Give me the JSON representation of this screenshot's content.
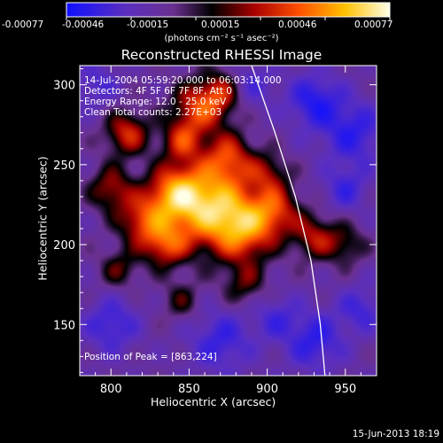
{
  "colorbar": {
    "tick_labels": [
      "-0.00077",
      "-0.00046",
      "-0.00015",
      "0.00015",
      "0.00046",
      "0.00077"
    ],
    "units": "(photons cm⁻² s⁻¹ asec⁻²)",
    "range": [
      -0.00077,
      0.00077
    ]
  },
  "title": "Reconstructed RHESSI Image",
  "info": {
    "line1": "14-Jul-2004 05:59:20.000 to 06:03:14.000",
    "line2": "Detectors: 4F 5F 6F 7F 8F, Att 0",
    "line3": "Energy Range: 12.0 - 25.0 keV",
    "line4": "Clean    Total counts: 2.27E+03"
  },
  "peak_label": "Position of Peak = [863,224]",
  "timestamp": "15-Jun-2013 18:19",
  "chart_data": {
    "type": "heatmap",
    "title": "Reconstructed RHESSI Image",
    "xlabel": "Heliocentric X (arcsec)",
    "ylabel": "Heliocentric Y (arcsec)",
    "xlim": [
      780,
      970
    ],
    "ylim": [
      118,
      312
    ],
    "x_ticks": [
      800,
      850,
      900,
      950
    ],
    "y_ticks": [
      150,
      200,
      250,
      300
    ],
    "peak": [
      863,
      224
    ],
    "colormap_colors": [
      "#1010ff",
      "#6a2fb0",
      "#000000",
      "#b00000",
      "#ff6000",
      "#ffd000",
      "#ffffe0"
    ],
    "limb_points": [
      [
        890,
        312
      ],
      [
        905,
        270
      ],
      [
        918,
        230
      ],
      [
        928,
        190
      ],
      [
        934,
        150
      ],
      [
        937,
        118
      ]
    ],
    "sources": [
      {
        "x": 862,
        "y": 225,
        "amp": 1.0,
        "sigma": 18
      },
      {
        "x": 885,
        "y": 210,
        "amp": 0.75,
        "sigma": 14
      },
      {
        "x": 840,
        "y": 232,
        "amp": 0.7,
        "sigma": 12
      },
      {
        "x": 905,
        "y": 222,
        "amp": 0.55,
        "sigma": 11
      },
      {
        "x": 820,
        "y": 215,
        "amp": 0.6,
        "sigma": 11
      },
      {
        "x": 835,
        "y": 200,
        "amp": 0.6,
        "sigma": 10
      },
      {
        "x": 800,
        "y": 235,
        "amp": 0.5,
        "sigma": 10
      },
      {
        "x": 810,
        "y": 270,
        "amp": 0.6,
        "sigma": 10
      },
      {
        "x": 855,
        "y": 285,
        "amp": 0.6,
        "sigma": 12
      },
      {
        "x": 875,
        "y": 255,
        "amp": 0.55,
        "sigma": 11
      },
      {
        "x": 870,
        "y": 295,
        "amp": 0.5,
        "sigma": 10
      },
      {
        "x": 930,
        "y": 205,
        "amp": 0.5,
        "sigma": 10
      },
      {
        "x": 950,
        "y": 200,
        "amp": 0.35,
        "sigma": 9
      },
      {
        "x": 845,
        "y": 265,
        "amp": 0.5,
        "sigma": 9
      },
      {
        "x": 900,
        "y": 245,
        "amp": 0.4,
        "sigma": 9
      },
      {
        "x": 805,
        "y": 185,
        "amp": 0.35,
        "sigma": 9
      },
      {
        "x": 885,
        "y": 175,
        "amp": 0.35,
        "sigma": 10
      },
      {
        "x": 845,
        "y": 165,
        "amp": 0.3,
        "sigma": 9
      },
      {
        "x": 955,
        "y": 270,
        "amp": -0.45,
        "sigma": 14
      },
      {
        "x": 930,
        "y": 290,
        "amp": -0.5,
        "sigma": 12
      },
      {
        "x": 800,
        "y": 150,
        "amp": -0.4,
        "sigma": 12
      },
      {
        "x": 870,
        "y": 140,
        "amp": -0.4,
        "sigma": 14
      },
      {
        "x": 930,
        "y": 140,
        "amp": -0.45,
        "sigma": 13
      },
      {
        "x": 960,
        "y": 160,
        "amp": -0.35,
        "sigma": 10
      },
      {
        "x": 905,
        "y": 155,
        "amp": -0.3,
        "sigma": 10
      },
      {
        "x": 950,
        "y": 235,
        "amp": -0.35,
        "sigma": 10
      },
      {
        "x": 790,
        "y": 300,
        "amp": -0.3,
        "sigma": 10
      },
      {
        "x": 890,
        "y": 300,
        "amp": -0.3,
        "sigma": 10
      }
    ]
  }
}
